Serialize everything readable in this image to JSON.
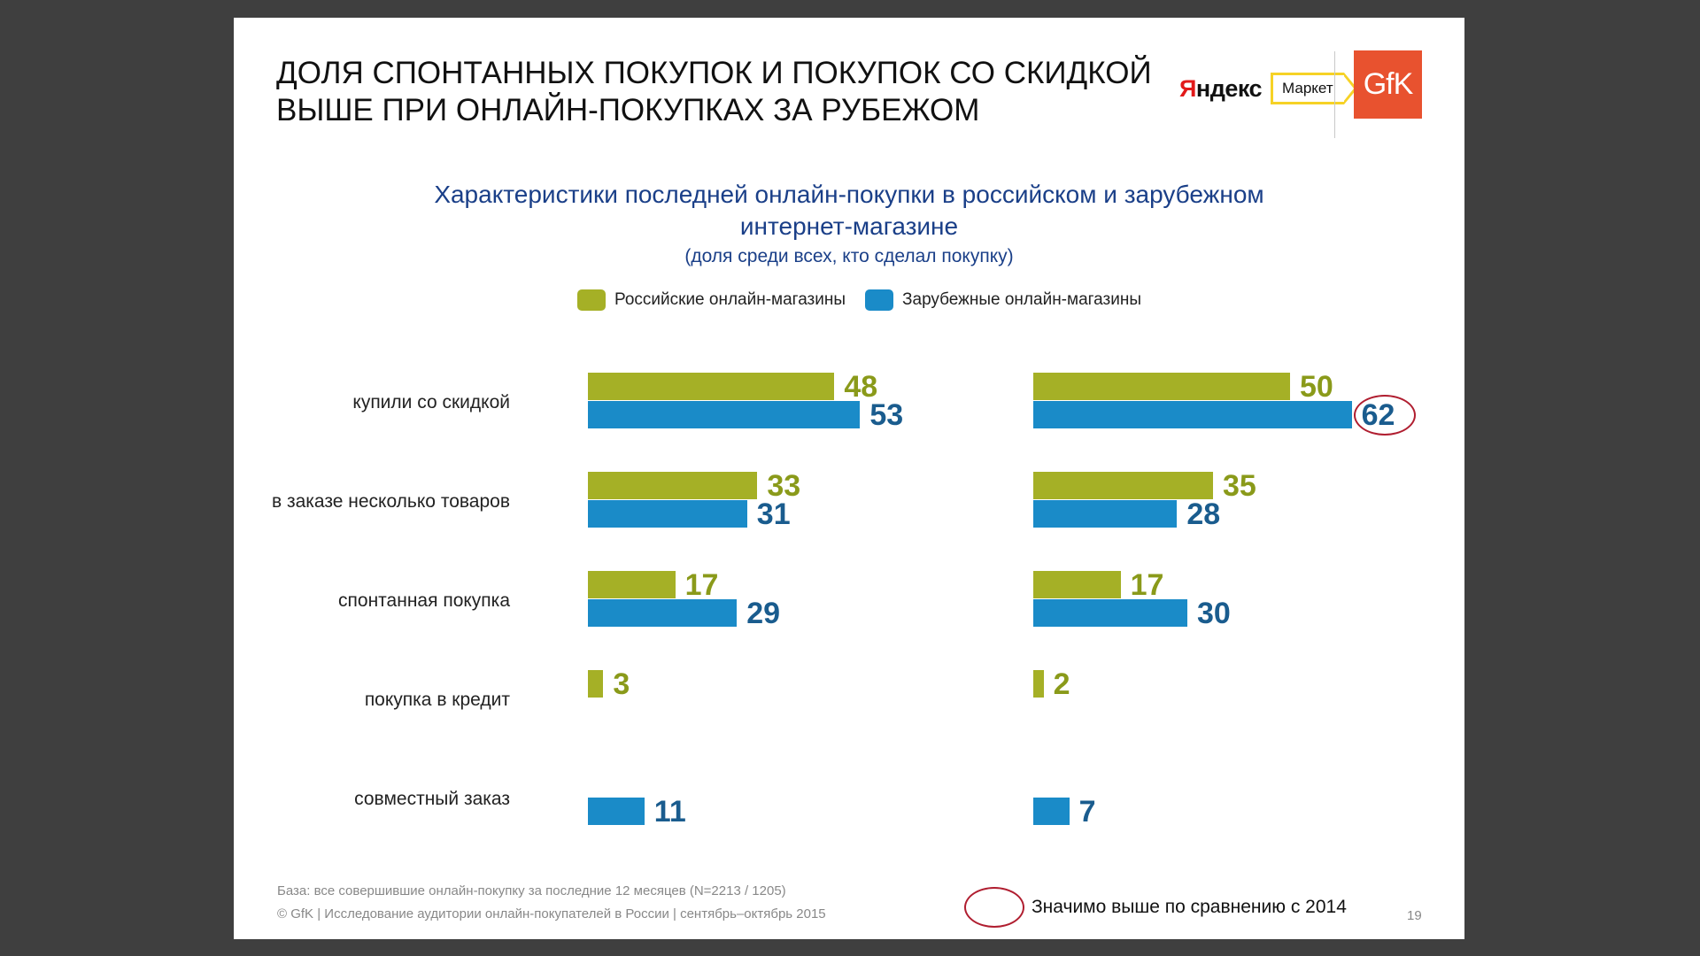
{
  "headline": {
    "line1": "ДОЛЯ СПОНТАННЫХ ПОКУПОК И ПОКУПОК СО СКИДКОЙ",
    "line2": "ВЫШЕ ПРИ ОНЛАЙН-ПОКУПКАХ ЗА РУБЕЖОМ"
  },
  "logos": {
    "yandex_first": "Я",
    "yandex_rest": "ндекс",
    "market": "Маркет",
    "gfk": "GfK"
  },
  "colors": {
    "russian": "#a5b026",
    "foreign": "#1a8bc8",
    "highlight": "#b01e30",
    "title": "#1a3f88"
  },
  "chart_data": {
    "type": "bar",
    "orientation": "horizontal",
    "title": "Характеристики последней онлайн-покупки в российском и зарубежном интернет-магазине",
    "title_line1": "Характеристики последней онлайн-покупки в российском и зарубежном",
    "title_line2": "интернет-магазине",
    "subtitle": "(доля среди всех, кто сделал покупку)",
    "legend": [
      "Российские онлайн-магазины",
      "Зарубежные онлайн-магазины"
    ],
    "categories": [
      "купили со скидкой",
      "в заказе несколько товаров",
      "спонтанная покупка",
      "покупка в кредит",
      "совместный заказ"
    ],
    "panels": [
      {
        "series": [
          {
            "name": "Российские онлайн-магазины",
            "values": [
              48,
              33,
              17,
              3,
              null
            ]
          },
          {
            "name": "Зарубежные онлайн-магазины",
            "values": [
              53,
              31,
              29,
              null,
              11
            ]
          }
        ]
      },
      {
        "series": [
          {
            "name": "Российские онлайн-магазины",
            "values": [
              50,
              35,
              17,
              2,
              null
            ]
          },
          {
            "name": "Зарубежные онлайн-магазины",
            "values": [
              62,
              28,
              30,
              null,
              7
            ]
          }
        ],
        "highlighted": {
          "series": 1,
          "category": 0,
          "value": 62
        }
      }
    ],
    "value_max": 62
  },
  "footer": {
    "base": "База: все совершившие онлайн-покупку за последние 12 месяцев (N=2213 / 1205)",
    "source": "© GfK | Исследование аудитории онлайн-покупателей в России | сентябрь–октябрь 2015",
    "highlight_legend": "Значимо выше по сравнению с 2014",
    "page": "19"
  }
}
